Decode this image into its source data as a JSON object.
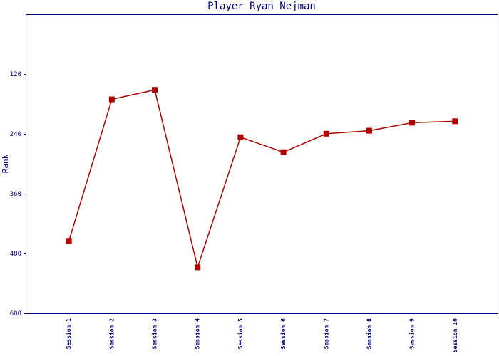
{
  "chart_data": {
    "type": "line",
    "title": "Player Ryan Nejman",
    "y_label": "Rank",
    "categories": [
      "Session 1",
      "Session 2",
      "Session 3",
      "Session 4",
      "Session 5",
      "Session 6",
      "Session 7",
      "Session 8",
      "Session 9",
      "Session 10"
    ],
    "series": [
      {
        "name": "Rank",
        "color": "#b00000",
        "values": [
          454,
          170,
          151,
          507,
          246,
          276,
          239,
          233,
          217,
          214
        ]
      }
    ],
    "ylim": [
      600,
      0
    ],
    "yticks": [
      120,
      240,
      360,
      480,
      600
    ],
    "grid": false
  }
}
